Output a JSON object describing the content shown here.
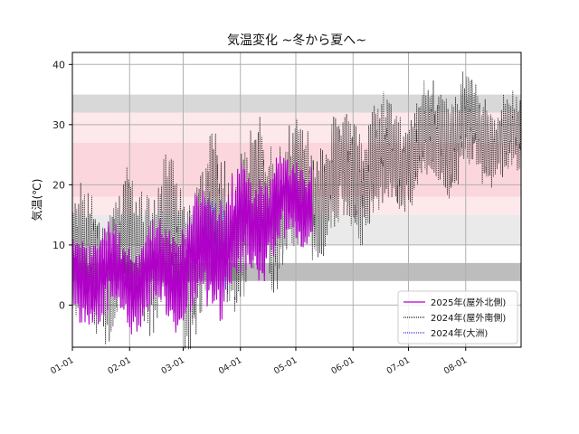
{
  "chart_data": {
    "type": "line",
    "title": "気温変化 ~冬から夏へ~",
    "xlabel": "",
    "ylabel": "気温(℃)",
    "xlim": [
      "01-01",
      "08-31"
    ],
    "ylim": [
      -7,
      42
    ],
    "x_ticks": [
      "01-01",
      "02-01",
      "03-01",
      "04-01",
      "05-01",
      "06-01",
      "07-01",
      "08-01"
    ],
    "y_ticks": [
      0,
      10,
      20,
      30,
      40
    ],
    "grid": true,
    "legend_position": "lower-right",
    "bands": [
      {
        "y0": 32,
        "y1": 35,
        "color": "#d8d8d8"
      },
      {
        "y0": 30,
        "y1": 32,
        "color": "#fde8ec"
      },
      {
        "y0": 27,
        "y1": 30,
        "color": "#fde8ec"
      },
      {
        "y0": 18,
        "y1": 27,
        "color": "#fbd6dd"
      },
      {
        "y0": 15,
        "y1": 18,
        "color": "#fde8ec"
      },
      {
        "y0": 10,
        "y1": 15,
        "color": "#eaeaea"
      },
      {
        "y0": 4,
        "y1": 7,
        "color": "#bdbdbd"
      }
    ],
    "series": [
      {
        "name": "2024年(屋外南側)",
        "color": "#222222",
        "style": "dotted",
        "x": [
          "01-01",
          "01-15",
          "02-01",
          "02-15",
          "03-01",
          "03-15",
          "04-01",
          "04-15",
          "05-01",
          "05-15",
          "06-01",
          "06-15",
          "07-01",
          "07-15",
          "08-01",
          "08-15",
          "08-31"
        ],
        "mean": [
          6,
          7,
          8,
          10,
          9,
          11,
          14,
          17,
          18,
          19,
          22,
          23,
          25,
          28,
          29,
          28,
          27
        ],
        "amplitude": [
          9,
          9,
          10,
          10,
          11,
          11,
          11,
          10,
          9,
          8,
          8,
          8,
          7,
          7,
          7,
          6,
          5
        ]
      },
      {
        "name": "2024年(大洲)",
        "color": "#3333dd",
        "style": "dotted",
        "x": [
          "03-05",
          "03-10",
          "03-15",
          "03-20",
          "03-25"
        ],
        "mean": [
          8,
          9,
          10,
          11,
          12
        ],
        "amplitude": [
          5,
          5,
          6,
          6,
          6
        ]
      },
      {
        "name": "2025年(屋外北側)",
        "color": "#b000c8",
        "style": "solid",
        "x": [
          "01-01",
          "01-15",
          "02-01",
          "02-15",
          "03-01",
          "03-15",
          "04-01",
          "04-15",
          "05-01",
          "05-10"
        ],
        "mean": [
          4,
          5,
          4,
          5,
          6,
          9,
          12,
          15,
          17,
          18
        ],
        "amplitude": [
          6,
          6,
          6,
          6,
          7,
          8,
          8,
          7,
          6,
          5
        ]
      }
    ]
  }
}
